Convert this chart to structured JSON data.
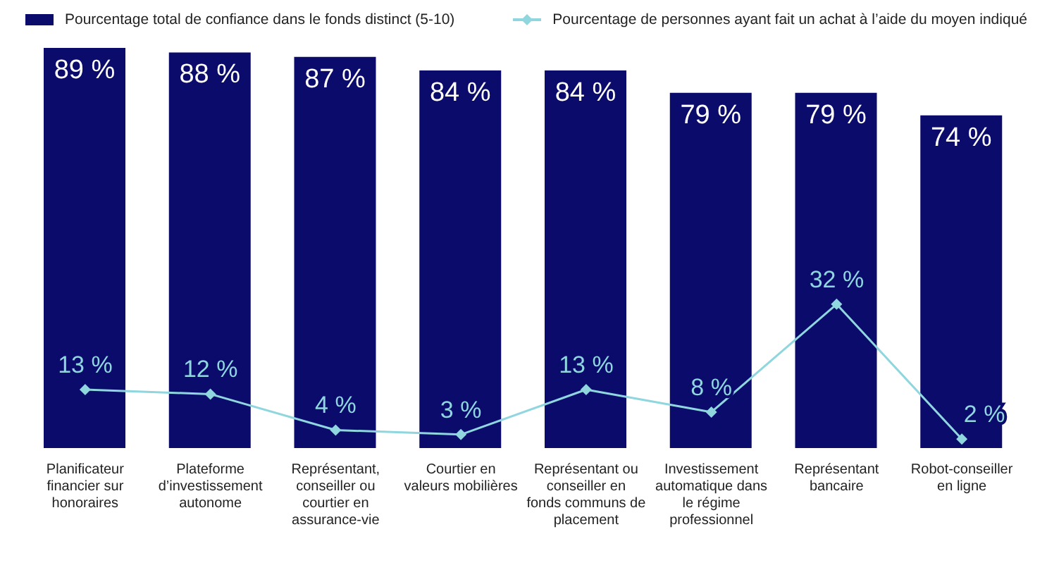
{
  "chart_data": {
    "type": "bar",
    "categories": [
      "Planificateur financier sur honoraires",
      "Plateforme d’investissement autonome",
      "Représentant, conseiller ou courtier en assurance-vie",
      "Courtier en valeurs mobilières",
      "Représentant ou conseiller en fonds communs de placement",
      "Investissement automatique dans le régime professionnel",
      "Représentant bancaire",
      "Robot-conseiller en ligne"
    ],
    "series": [
      {
        "name": "Pourcentage total de confiance dans le fonds distinct (5-10)",
        "color": "#0b0b6b",
        "values": [
          89,
          88,
          87,
          84,
          84,
          79,
          79,
          74
        ],
        "value_labels": [
          "89 %",
          "88 %",
          "87 %",
          "84 %",
          "84 %",
          "79 %",
          "79 %",
          "74 %"
        ]
      },
      {
        "name": "Pourcentage de personnes ayant fait un achat à l’aide du moyen indiqué",
        "type": "line",
        "color": "#8fd6df",
        "marker": "diamond",
        "values": [
          13,
          12,
          4,
          3,
          13,
          8,
          32,
          2
        ],
        "value_labels": [
          "13 %",
          "12 %",
          "4 %",
          "3 %",
          "13 %",
          "8 %",
          "32 %",
          "2 %"
        ]
      }
    ],
    "legend": "top",
    "grid": false
  }
}
